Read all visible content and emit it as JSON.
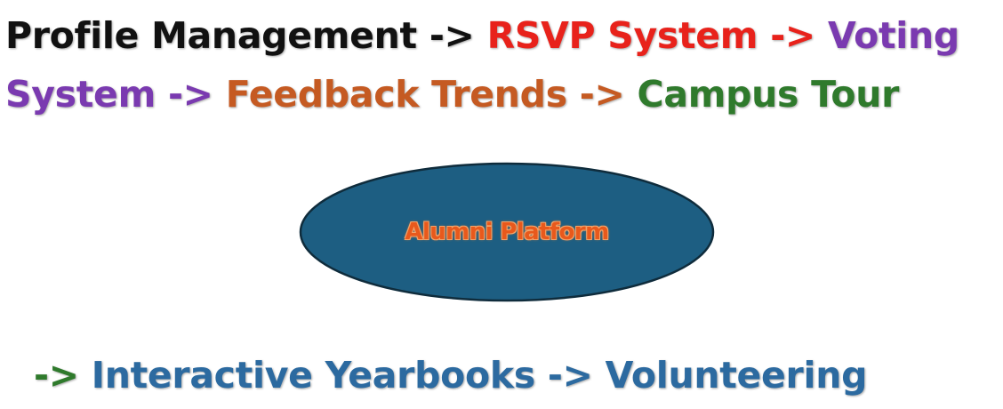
{
  "colors": {
    "black": "#111111",
    "red": "#e8221b",
    "purple": "#7a3ab0",
    "orange": "#c55a22",
    "green": "#2f7a2c",
    "blue": "#2c6aa0",
    "ellipse_fill": "#1d5e82",
    "ellipse_stroke": "#0f2c3c",
    "center_text": "#e8591c"
  },
  "flow": {
    "line1": [
      {
        "text": "Profile Management -> ",
        "color": "black"
      },
      {
        "text": "RSVP System -> ",
        "color": "red"
      },
      {
        "text": "Voting",
        "color": "purple"
      }
    ],
    "line2": [
      {
        "text": "System -> ",
        "color": "purple"
      },
      {
        "text": "Feedback Trends -> ",
        "color": "orange"
      },
      {
        "text": "Campus Tour",
        "color": "green"
      }
    ],
    "line3": [
      {
        "text": "-> ",
        "color": "green"
      },
      {
        "text": "Interactive Yearbooks -> Volunteering",
        "color": "blue"
      }
    ]
  },
  "center": {
    "label": "Alumni Platform"
  }
}
